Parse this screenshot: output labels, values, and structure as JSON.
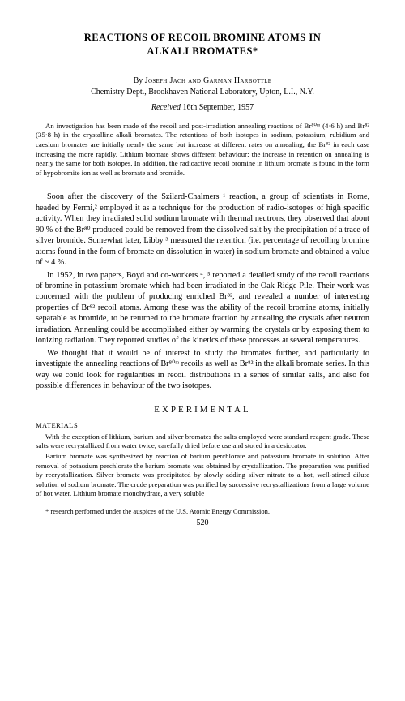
{
  "title_line1": "REACTIONS OF RECOIL BROMINE ATOMS IN",
  "title_line2": "ALKALI BROMATES*",
  "byline_prefix": "By ",
  "authors": "Joseph Jach and Garman Harbottle",
  "affiliation": "Chemistry Dept., Brookhaven National Laboratory, Upton, L.I., N.Y.",
  "received_prefix": "Received ",
  "received_date": "16th September, 1957",
  "abstract": "An investigation has been made of the recoil and post-irradiation annealing reactions of Br⁸⁰ᵐ (4·6 h) and Br⁸² (35·8 h) in the crystalline alkali bromates. The retentions of both isotopes in sodium, potassium, rubidium and caesium bromates are initially nearly the same but increase at different rates on annealing, the Br⁸² in each case increasing the more rapidly. Lithium bromate shows different behaviour: the increase in retention on annealing is nearly the same for both isotopes. In addition, the radioactive recoil bromine in lithium bromate is found in the form of hypobromite ion as well as bromate and bromide.",
  "para1": "Soon after the discovery of the Szilard-Chalmers ¹ reaction, a group of scientists in Rome, headed by Fermi,² employed it as a technique for the production of radio-isotopes of high specific activity. When they irradiated solid sodium bromate with thermal neutrons, they observed that about 90 % of the Br⁸⁰ produced could be removed from the dissolved salt by the precipitation of a trace of silver bromide. Somewhat later, Libby ³ measured the retention (i.e. percentage of recoiling bromine atoms found in the form of bromate on dissolution in water) in sodium bromate and obtained a value of ~ 4 %.",
  "para2": "In 1952, in two papers, Boyd and co-workers ⁴, ⁵ reported a detailed study of the recoil reactions of bromine in potassium bromate which had been irradiated in the Oak Ridge Pile. Their work was concerned with the problem of producing enriched Br⁸², and revealed a number of interesting properties of Br⁸² recoil atoms. Among these was the ability of the recoil bromine atoms, initially separable as bromide, to be returned to the bromate fraction by annealing the crystals after neutron irradiation. Annealing could be accomplished either by warming the crystals or by exposing them to ionizing radiation. They reported studies of the kinetics of these processes at several temperatures.",
  "para3": "We thought that it would be of interest to study the bromates further, and particularly to investigate the annealing reactions of Br⁸⁰ᵐ recoils as well as Br⁸² in the alkali bromate series. In this way we could look for regularities in recoil distributions in a series of similar salts, and also for possible differences in behaviour of the two isotopes.",
  "section_heading": "EXPERIMENTAL",
  "subheading": "MATERIALS",
  "exp_para1": "With the exception of lithium, barium and silver bromates the salts employed were standard reagent grade. These salts were recrystallized from water twice, carefully dried before use and stored in a desiccator.",
  "exp_para2": "Barium bromate was synthesized by reaction of barium perchlorate and potassium bromate in solution. After removal of potassium perchlorate the barium bromate was obtained by crystallization. The preparation was purified by recrystallization. Silver bromate was precipitated by slowly adding silver nitrate to a hot, well-stirred dilute solution of sodium bromate. The crude preparation was purified by successive recrystallizations from a large volume of hot water. Lithium bromate monohydrate, a very soluble",
  "footnote": "* research performed under the auspices of the U.S. Atomic Energy Commission.",
  "page_number": "520"
}
